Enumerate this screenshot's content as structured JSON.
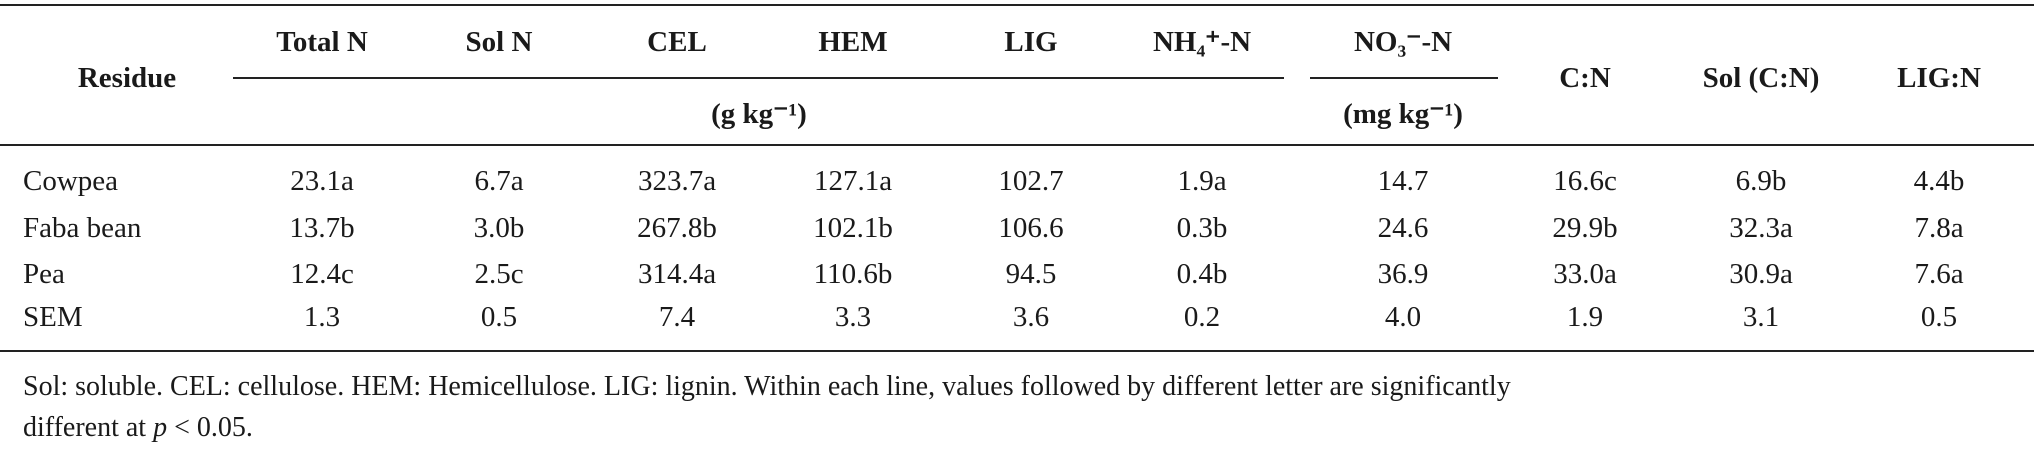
{
  "header": {
    "residue": "Residue",
    "columns": [
      "Total N",
      "Sol N",
      "CEL",
      "HEM",
      "LIG",
      "NH₄⁺-N",
      "NO₃⁻-N",
      "C:N",
      "Sol (C:N)",
      "LIG:N"
    ],
    "units": [
      "(g kg⁻¹)",
      "(mg kg⁻¹)"
    ]
  },
  "table": {
    "rows": [
      [
        "Cowpea",
        "23.1a",
        "6.7a",
        "323.7a",
        "127.1a",
        "102.7",
        "1.9a",
        "14.7",
        "16.6c",
        "6.9b",
        "4.4b"
      ],
      [
        "Faba bean",
        "13.7b",
        "3.0b",
        "267.8b",
        "102.1b",
        "106.6",
        "0.3b",
        "24.6",
        "29.9b",
        "32.3a",
        "7.8a"
      ],
      [
        "Pea",
        "12.4c",
        "2.5c",
        "314.4a",
        "110.6b",
        "94.5",
        "0.4b",
        "36.9",
        "33.0a",
        "30.9a",
        "7.6a"
      ],
      [
        "SEM",
        "1.3",
        "0.5",
        "7.4",
        "3.3",
        "3.6",
        "0.2",
        "4.0",
        "1.9",
        "3.1",
        "0.5"
      ]
    ]
  },
  "note": [
    "Sol: soluble. CEL: cellulose. HEM: Hemicellulose. LIG: lignin. Within each line, values followed by different letter are significantly",
    "different at ",
    "p",
    " < 0.05."
  ]
}
